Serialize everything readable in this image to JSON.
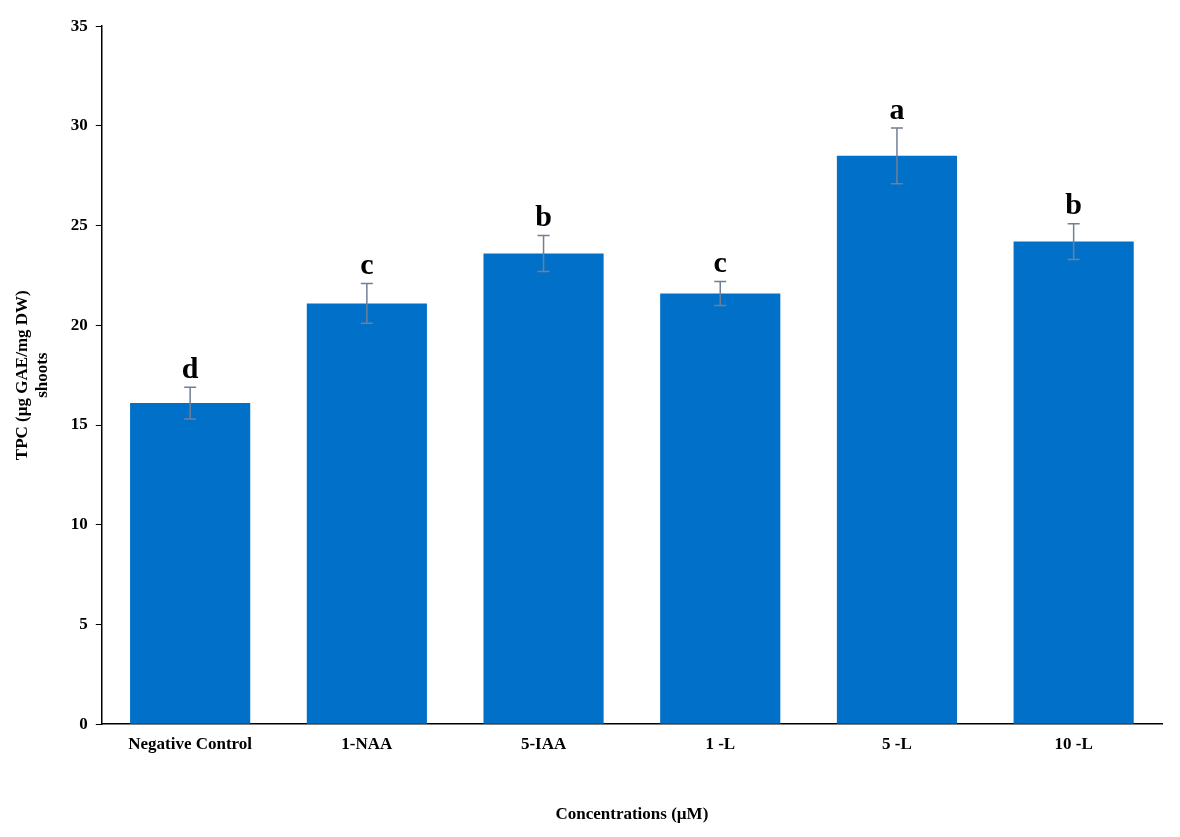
{
  "chart_data": {
    "type": "bar",
    "xlabel": "Concentrations (µM)",
    "ylabel": "TPC (µg GAE/mg DW)\nshoots",
    "categories": [
      "Negative Control",
      "1-NAA",
      "5-IAA",
      "1 -L",
      "5 -L",
      "10 -L"
    ],
    "values": [
      16.1,
      21.1,
      23.6,
      21.6,
      28.5,
      24.2
    ],
    "errors": [
      0.8,
      1.0,
      0.9,
      0.6,
      1.4,
      0.9
    ],
    "color": "#0070c8",
    "ylim": [
      0,
      35
    ],
    "yticks": [
      0,
      5,
      10,
      15,
      20,
      25,
      30,
      35
    ],
    "grid": false,
    "legend": false,
    "annotations": [
      {
        "text": "d",
        "x": "Negative Control",
        "y": 16.9
      },
      {
        "text": "c",
        "x": "1-NAA",
        "y": 22.1
      },
      {
        "text": "b",
        "x": "5-IAA",
        "y": 24.5
      },
      {
        "text": "c",
        "x": "1 -L",
        "y": 22.2
      },
      {
        "text": "a",
        "x": "5 -L",
        "y": 29.9
      },
      {
        "text": "b",
        "x": "10 -L",
        "y": 25.1
      }
    ]
  }
}
